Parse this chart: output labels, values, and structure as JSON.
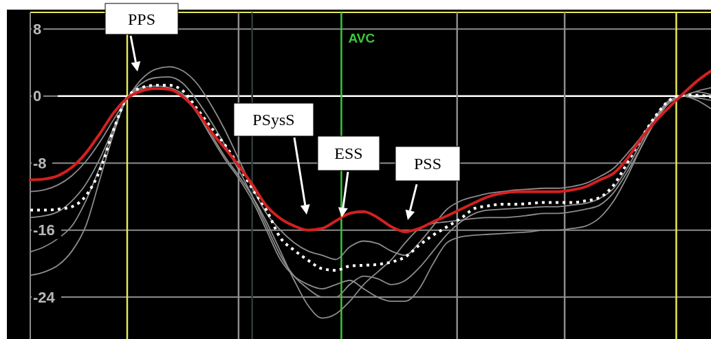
{
  "chart_data": {
    "type": "line",
    "categories": [
      null,
      null,
      null,
      null,
      null,
      null,
      null,
      null,
      null,
      null,
      null,
      null,
      null,
      null,
      null,
      null,
      null,
      null,
      null,
      null,
      null,
      null,
      null,
      null,
      null,
      null,
      null,
      null,
      null,
      null,
      null,
      null,
      null,
      null,
      null,
      null,
      null,
      null,
      null,
      null,
      null,
      null,
      null,
      null,
      null,
      null,
      null,
      null,
      null,
      null
    ],
    "series": [
      {
        "color": "#8c8c8c",
        "values": [
          -11.4,
          -11.2,
          -10.6,
          -9.5,
          -7.8,
          -5.5,
          -2.8,
          -0.2,
          2.0,
          3.2,
          3.5,
          3.0,
          1.5,
          -1.0,
          -4.0,
          -7.5,
          -11.0,
          -14.0,
          -16.0,
          -17.5,
          -18.5,
          -19.0,
          -19.5,
          -18.0,
          -17.3,
          -17.6,
          -18.5,
          -19.0,
          -17.5,
          -15.5,
          -13.5,
          -12.5,
          -12.0,
          -11.6,
          -11.4,
          -11.2,
          -11.1,
          -11.0,
          -11.0,
          -10.8,
          -10.4,
          -9.6,
          -8.6,
          -6.8,
          -4.8,
          -2.5,
          -0.6,
          0.0,
          -0.5,
          -1.5
        ]
      },
      {
        "color": "#8c8c8c",
        "values": [
          -14.5,
          -14.3,
          -13.8,
          -12.5,
          -10.5,
          -7.5,
          -3.8,
          -0.2,
          1.5,
          2.2,
          2.3,
          1.5,
          -0.5,
          -3.0,
          -5.8,
          -8.8,
          -12.0,
          -15.5,
          -19.0,
          -21.5,
          -23.0,
          -24.0,
          -24.0,
          -22.5,
          -21.5,
          -21.8,
          -22.5,
          -22.0,
          -20.5,
          -18.5,
          -16.5,
          -15.0,
          -14.0,
          -13.6,
          -13.5,
          -13.4,
          -13.3,
          -13.2,
          -13.2,
          -13.0,
          -12.8,
          -12.2,
          -11.0,
          -8.5,
          -5.5,
          -2.5,
          -0.5,
          0.0,
          -0.2,
          -0.5
        ]
      },
      {
        "color": "#8c8c8c",
        "values": [
          -18.6,
          -18.0,
          -17.0,
          -15.5,
          -12.5,
          -8.5,
          -4.2,
          -0.2,
          1.0,
          1.2,
          1.0,
          0.2,
          -1.8,
          -4.5,
          -7.2,
          -9.5,
          -12.0,
          -15.0,
          -18.5,
          -22.0,
          -25.0,
          -26.5,
          -26.0,
          -24.5,
          -22.5,
          -21.0,
          -19.5,
          -17.5,
          -15.8,
          -15.2,
          -15.0,
          -14.8,
          -14.6,
          -14.5,
          -14.5,
          -14.4,
          -14.2,
          -14.0,
          -14.0,
          -13.8,
          -13.5,
          -13.0,
          -11.5,
          -9.0,
          -6.0,
          -3.0,
          -0.8,
          0.0,
          0.5,
          0.2
        ]
      },
      {
        "color": "#8c8c8c",
        "values": [
          -21.4,
          -21.0,
          -20.2,
          -18.5,
          -15.5,
          -10.0,
          -4.5,
          -0.2,
          0.8,
          1.0,
          0.8,
          0.0,
          -2.0,
          -4.8,
          -7.5,
          -9.8,
          -12.5,
          -16.0,
          -19.5,
          -21.5,
          -22.5,
          -23.0,
          -22.5,
          -22.0,
          -23.0,
          -24.0,
          -24.5,
          -24.5,
          -23.0,
          -20.0,
          -17.5,
          -16.8,
          -16.6,
          -16.5,
          -16.4,
          -16.3,
          -16.2,
          -16.0,
          -16.0,
          -15.8,
          -15.5,
          -14.5,
          -12.5,
          -9.5,
          -6.0,
          -2.8,
          -0.8,
          0.0,
          0.6,
          1.0
        ]
      },
      {
        "color": "#ffffff",
        "line_style": "dotted",
        "values": [
          -13.6,
          -13.6,
          -13.5,
          -13.2,
          -11.9,
          -8.9,
          -4.0,
          -0.1,
          1.0,
          1.3,
          1.3,
          0.6,
          -1.5,
          -3.7,
          -5.8,
          -8.3,
          -11.1,
          -13.6,
          -16.9,
          -18.4,
          -19.6,
          -20.6,
          -20.8,
          -20.3,
          -20.2,
          -20.1,
          -19.8,
          -19.2,
          -17.8,
          -16.6,
          -15.6,
          -14.6,
          -13.4,
          -13.1,
          -12.9,
          -12.9,
          -12.8,
          -12.7,
          -12.7,
          -12.7,
          -12.5,
          -12.1,
          -10.6,
          -7.9,
          -5.0,
          -2.4,
          -0.5,
          0.1,
          0.1,
          -0.1
        ]
      },
      {
        "color": "#d42020",
        "values": [
          -10.0,
          -9.9,
          -9.5,
          -8.5,
          -6.8,
          -4.5,
          -2.0,
          -0.2,
          0.6,
          0.9,
          0.8,
          -0.1,
          -1.8,
          -4.2,
          -6.2,
          -8.3,
          -10.6,
          -13.1,
          -14.6,
          -15.5,
          -16.0,
          -15.8,
          -14.9,
          -14.0,
          -13.8,
          -14.5,
          -15.6,
          -16.2,
          -15.8,
          -15.0,
          -14.3,
          -13.5,
          -12.7,
          -12.0,
          -11.6,
          -11.4,
          -11.4,
          -11.4,
          -11.4,
          -11.2,
          -10.8,
          -10.0,
          -9.2,
          -7.4,
          -5.0,
          -3.0,
          -1.3,
          0.3,
          1.8,
          3.0
        ]
      }
    ],
    "ylim": [
      -29,
      10
    ],
    "yticks": [
      8,
      0,
      -8,
      -16,
      -24
    ],
    "grid": "y",
    "tick_labels": "y",
    "line_style": "solid",
    "ref_lines": [
      {
        "axis": "y",
        "value": 0,
        "color": "#ffffff"
      }
    ],
    "annotations": [
      "AVC",
      "PPS",
      "PSysS",
      "ESS",
      "PSS"
    ]
  }
}
